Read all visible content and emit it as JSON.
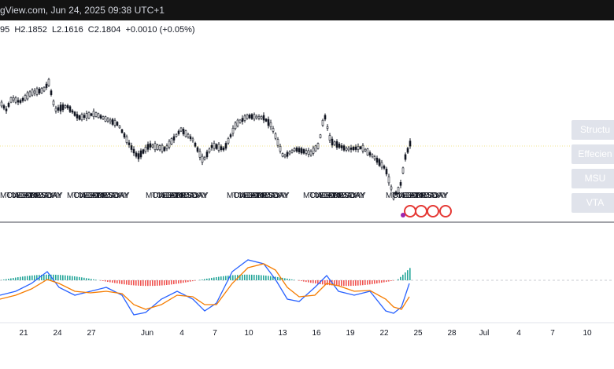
{
  "header": {
    "title": "gView.com, Jun 24, 2025 09:38 UTC+1"
  },
  "legend": {
    "open": "95",
    "high": "H2.1852",
    "low": "L2.1616",
    "close": "C2.1804",
    "change": "+0.0010 (+0.05%)"
  },
  "buttons": [
    "Structu",
    "Effecien",
    "MSU",
    "VTA"
  ],
  "session_labels": [
    "MONDAY",
    "TUESDAY",
    "WEDNESDAY",
    "THURSDAY",
    "FRIDAY"
  ],
  "x_axis": [
    "21",
    "24",
    "27",
    "Jun",
    "4",
    "7",
    "10",
    "13",
    "16",
    "19",
    "22",
    "25",
    "28",
    "Jul",
    "4",
    "7",
    "10"
  ]
}
